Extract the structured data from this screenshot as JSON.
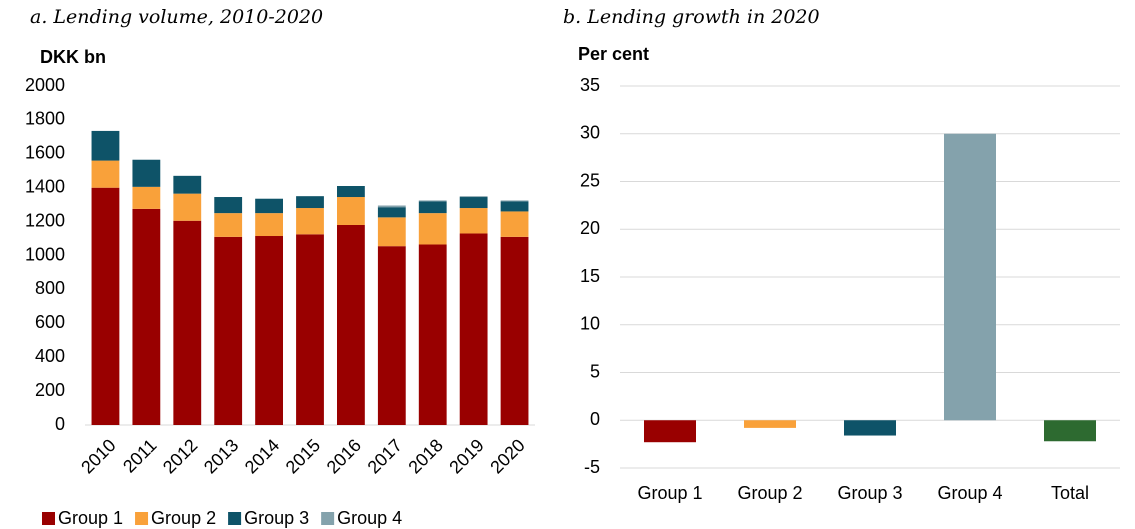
{
  "chart_data": [
    {
      "type": "stacked_bar",
      "title": "a. Lending volume, 2010-2020",
      "y_label": "DKK bn",
      "categories": [
        "2010",
        "2011",
        "2012",
        "2013",
        "2014",
        "2015",
        "2016",
        "2017",
        "2018",
        "2019",
        "2020"
      ],
      "series": [
        {
          "name": "Group 1",
          "color": "#990000",
          "values": [
            1400,
            1275,
            1205,
            1110,
            1115,
            1125,
            1180,
            1055,
            1065,
            1130,
            1110
          ]
        },
        {
          "name": "Group 2",
          "color": "#f9a13a",
          "values": [
            160,
            130,
            160,
            140,
            135,
            155,
            165,
            170,
            185,
            150,
            150
          ]
        },
        {
          "name": "Group 3",
          "color": "#0e5368",
          "values": [
            175,
            160,
            105,
            95,
            85,
            70,
            65,
            60,
            70,
            65,
            60
          ]
        },
        {
          "name": "Group 4",
          "color": "#84a2ac",
          "values": [
            0,
            0,
            0,
            0,
            0,
            0,
            0,
            10,
            5,
            5,
            5
          ]
        }
      ],
      "ylim": [
        0,
        2000
      ],
      "yticks": [
        0,
        200,
        400,
        600,
        800,
        1000,
        1200,
        1400,
        1600,
        1800,
        2000
      ],
      "grid": false
    },
    {
      "type": "bar",
      "title": "b. Lending growth in 2020",
      "y_label": "Per cent",
      "categories": [
        "Group 1",
        "Group 2",
        "Group 3",
        "Group 4",
        "Total"
      ],
      "values": [
        -2.3,
        -0.8,
        -1.6,
        30,
        -2.2
      ],
      "colors": [
        "#990000",
        "#f9a13a",
        "#0e5368",
        "#84a2ac",
        "#2d6a30"
      ],
      "ylim": [
        -5,
        35
      ],
      "yticks": [
        -5,
        0,
        5,
        10,
        15,
        20,
        25,
        30,
        35
      ],
      "grid": true
    }
  ]
}
